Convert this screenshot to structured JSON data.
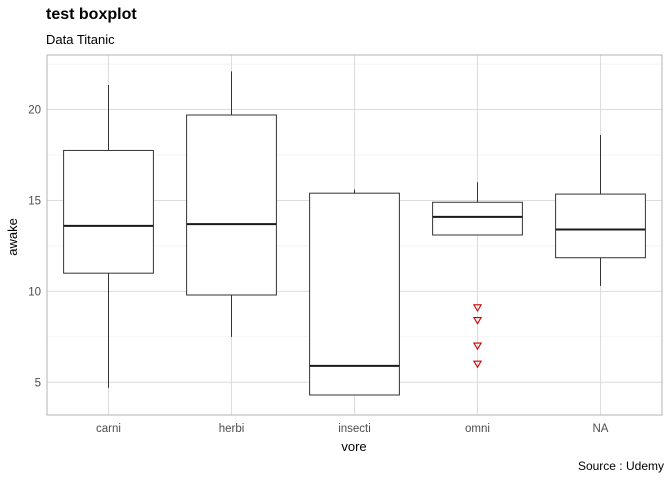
{
  "chart_data": {
    "type": "boxplot",
    "title": "test boxplot",
    "subtitle": "Data Titanic",
    "caption": "Source : Udemy",
    "xlabel": "vore",
    "ylabel": "awake",
    "ylim": [
      3.2,
      23.0
    ],
    "yticks": [
      5,
      10,
      15,
      20
    ],
    "grid": true,
    "categories": [
      "carni",
      "herbi",
      "insecti",
      "omni",
      "NA"
    ],
    "boxes": [
      {
        "category": "carni",
        "lower_whisker": 4.7,
        "q1": 11.0,
        "median": 13.6,
        "q3": 17.75,
        "upper_whisker": 21.35,
        "outliers": []
      },
      {
        "category": "herbi",
        "lower_whisker": 7.5,
        "q1": 9.8,
        "median": 13.7,
        "q3": 19.7,
        "upper_whisker": 22.1,
        "outliers": []
      },
      {
        "category": "insecti",
        "lower_whisker": 4.3,
        "q1": 4.3,
        "median": 5.9,
        "q3": 15.4,
        "upper_whisker": 15.6,
        "outliers": []
      },
      {
        "category": "omni",
        "lower_whisker": 13.1,
        "q1": 13.1,
        "median": 14.1,
        "q3": 14.9,
        "upper_whisker": 16.0,
        "outliers": [
          9.1,
          8.4,
          7.0,
          6.0
        ]
      },
      {
        "category": "NA",
        "lower_whisker": 10.3,
        "q1": 11.85,
        "median": 13.4,
        "q3": 15.35,
        "upper_whisker": 18.6,
        "outliers": []
      }
    ],
    "colors": {
      "box_line": "#333333",
      "median_line": "#1a1a1a",
      "outlier": "#cc0000",
      "grid_major": "#dcdcdc",
      "grid_minor": "#efefef",
      "panel_border": "#b3b3b3",
      "tick_text": "#4d4d4d"
    }
  }
}
